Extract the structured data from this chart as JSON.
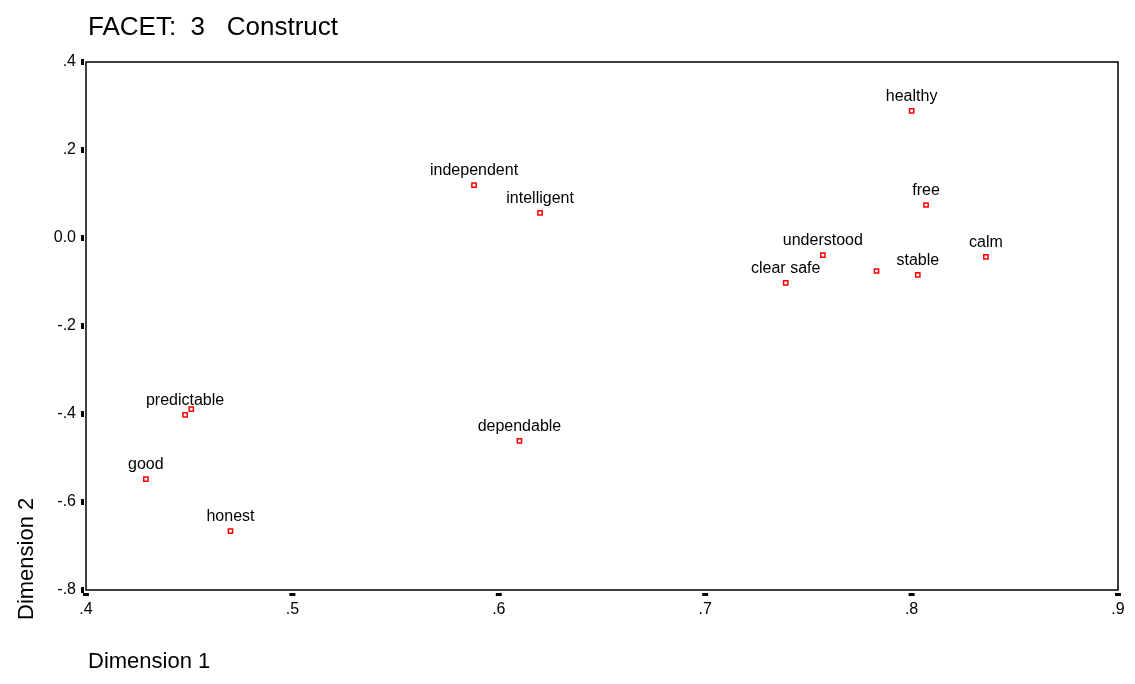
{
  "chart_data": {
    "type": "scatter",
    "title": "FACET:  3   Construct",
    "xlabel": "Dimension 1",
    "ylabel": "Dimension 2",
    "x": [
      0.8,
      0.807,
      0.836,
      0.803,
      0.757,
      0.783,
      0.739,
      0.588,
      0.62,
      0.61,
      0.448,
      0.451,
      0.429,
      0.47
    ],
    "series": [
      {
        "color": "#ff0000",
        "values": [
          0.289,
          0.075,
          -0.043,
          -0.084,
          -0.039,
          -0.075,
          -0.102,
          0.12,
          0.057,
          -0.461,
          -0.402,
          -0.389,
          -0.548,
          -0.666
        ]
      }
    ],
    "xlim": [
      0.4,
      0.9
    ],
    "ylim": [
      -0.8,
      0.4
    ],
    "xticks": [
      {
        "value": 0.4,
        "label": ".4"
      },
      {
        "value": 0.5,
        "label": ".5"
      },
      {
        "value": 0.6,
        "label": ".6"
      },
      {
        "value": 0.7,
        "label": ".7"
      },
      {
        "value": 0.8,
        "label": ".8"
      },
      {
        "value": 0.9,
        "label": ".9"
      }
    ],
    "yticks": [
      {
        "value": -0.8,
        "label": "-.8"
      },
      {
        "value": -0.6,
        "label": "-.6"
      },
      {
        "value": -0.4,
        "label": "-.4"
      },
      {
        "value": -0.2,
        "label": "-.2"
      },
      {
        "value": 0,
        "label": "0.0"
      },
      {
        "value": 0.2,
        "label": ".2"
      },
      {
        "value": 0.4,
        "label": ".4"
      }
    ],
    "marker": "square",
    "legend": false,
    "annotations": [
      {
        "text": "healthy",
        "x": 0.8,
        "y": 0.289
      },
      {
        "text": "free",
        "x": 0.807,
        "y": 0.075
      },
      {
        "text": "calm",
        "x": 0.836,
        "y": -0.043
      },
      {
        "text": "stable",
        "x": 0.803,
        "y": -0.084
      },
      {
        "text": "understood",
        "x": 0.757,
        "y": -0.039
      },
      {
        "text": "clear safe",
        "x": 0.739,
        "y": -0.102
      },
      {
        "text": "independent",
        "x": 0.588,
        "y": 0.12
      },
      {
        "text": "intelligent",
        "x": 0.62,
        "y": 0.057
      },
      {
        "text": "dependable",
        "x": 0.61,
        "y": -0.461
      },
      {
        "text": "predictable",
        "x": 0.448,
        "y": -0.402
      },
      {
        "text": "good",
        "x": 0.429,
        "y": -0.548
      },
      {
        "text": "honest",
        "x": 0.47,
        "y": -0.666
      }
    ]
  }
}
